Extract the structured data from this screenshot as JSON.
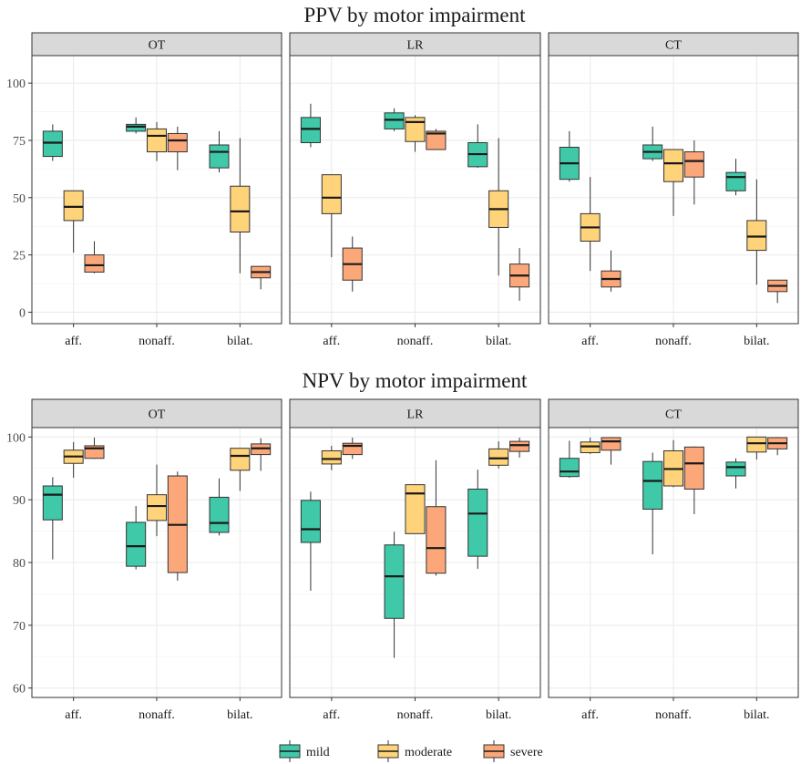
{
  "chart_data": [
    {
      "type": "boxplot",
      "title": "PPV by motor impairment",
      "ylim": [
        -5,
        112
      ],
      "yticks": [
        0,
        25,
        50,
        75,
        100
      ],
      "categories": [
        "aff.",
        "nonaff.",
        "bilat."
      ],
      "facets": [
        {
          "name": "OT",
          "boxes": {
            "aff.": {
              "mild": [
                66,
                68,
                74,
                79,
                82
              ],
              "moderate": [
                26,
                40,
                46,
                53,
                53
              ],
              "severe": [
                17,
                17.5,
                20.5,
                25,
                31
              ]
            },
            "nonaff.": {
              "mild": [
                78,
                79,
                81,
                82,
                85
              ],
              "moderate": [
                66,
                70,
                77,
                80,
                83
              ],
              "severe": [
                62,
                70,
                75,
                78,
                81
              ]
            },
            "bilat.": {
              "mild": [
                61,
                63,
                70,
                73,
                79
              ],
              "moderate": [
                17,
                35,
                44,
                55,
                76
              ],
              "severe": [
                10,
                15,
                17.5,
                20,
                20
              ]
            }
          }
        },
        {
          "name": "LR",
          "boxes": {
            "aff.": {
              "mild": [
                72,
                74,
                80,
                85,
                91
              ],
              "moderate": [
                24,
                43,
                50,
                60,
                60
              ],
              "severe": [
                9,
                14,
                21,
                28,
                33
              ]
            },
            "nonaff.": {
              "mild": [
                79,
                80,
                84,
                87,
                89
              ],
              "moderate": [
                70,
                74.5,
                83,
                85,
                86
              ],
              "severe": [
                71,
                71,
                78,
                79,
                80
              ]
            },
            "bilat.": {
              "mild": [
                63,
                63.5,
                69,
                74,
                82
              ],
              "moderate": [
                16,
                37,
                45,
                53,
                76
              ],
              "severe": [
                5,
                11,
                16,
                21,
                28
              ]
            }
          }
        },
        {
          "name": "CT",
          "boxes": {
            "aff.": {
              "mild": [
                57,
                58,
                65,
                72,
                79
              ],
              "moderate": [
                18,
                31,
                37,
                43,
                59
              ],
              "severe": [
                9,
                11,
                14.5,
                18,
                27
              ]
            },
            "nonaff.": {
              "mild": [
                66,
                67,
                70,
                73,
                81
              ],
              "moderate": [
                42,
                57,
                65,
                71,
                71
              ],
              "severe": [
                47,
                59,
                66,
                70,
                75
              ]
            },
            "bilat.": {
              "mild": [
                51,
                53,
                59,
                61,
                67
              ],
              "moderate": [
                12,
                27,
                33,
                40,
                58
              ],
              "severe": [
                4,
                9,
                11.5,
                14,
                14
              ]
            }
          }
        }
      ]
    },
    {
      "type": "boxplot",
      "title": "NPV by motor impairment",
      "ylim": [
        58.5,
        101.5
      ],
      "yticks": [
        60,
        70,
        80,
        90,
        100
      ],
      "categories": [
        "aff.",
        "nonaff.",
        "bilat."
      ],
      "facets": [
        {
          "name": "OT",
          "boxes": {
            "aff.": {
              "mild": [
                80.5,
                86.8,
                90.8,
                92.2,
                93.6
              ],
              "moderate": [
                93.5,
                95.8,
                96.9,
                97.9,
                99.2
              ],
              "severe": [
                96.5,
                96.6,
                98.2,
                98.6,
                99.9
              ]
            },
            "nonaff.": {
              "mild": [
                78.9,
                79.4,
                82.6,
                86.4,
                89.0
              ],
              "moderate": [
                84.2,
                86.7,
                89.0,
                90.8,
                95.6
              ],
              "severe": [
                77.1,
                78.4,
                86.0,
                93.8,
                94.5
              ]
            },
            "bilat.": {
              "mild": [
                84.3,
                84.8,
                86.3,
                90.4,
                93.4
              ],
              "moderate": [
                91.4,
                94.7,
                97.0,
                98.2,
                98.3
              ],
              "severe": [
                94.6,
                97.2,
                98.2,
                98.9,
                99.8
              ]
            }
          }
        },
        {
          "name": "LR",
          "boxes": {
            "aff.": {
              "mild": [
                75.5,
                83.2,
                85.3,
                89.9,
                91.3
              ],
              "moderate": [
                94.7,
                95.7,
                96.5,
                97.8,
                98.6
              ],
              "severe": [
                96.5,
                97.2,
                98.6,
                99.0,
                99.9
              ]
            },
            "nonaff.": {
              "mild": [
                64.8,
                71.1,
                77.8,
                82.8,
                84.9
              ],
              "moderate": [
                84.6,
                84.6,
                91.0,
                92.4,
                92.4
              ],
              "severe": [
                77.9,
                78.3,
                82.3,
                88.9,
                96.3
              ]
            },
            "bilat.": {
              "mild": [
                79.0,
                81.0,
                87.8,
                91.7,
                94.8
              ],
              "moderate": [
                95.0,
                95.5,
                96.6,
                98.1,
                99.3
              ],
              "severe": [
                96.7,
                97.7,
                98.7,
                99.3,
                99.9
              ]
            }
          }
        },
        {
          "name": "CT",
          "boxes": {
            "aff.": {
              "mild": [
                93.5,
                93.7,
                94.5,
                96.6,
                99.4
              ],
              "moderate": [
                97.3,
                97.5,
                98.5,
                99.2,
                99.9
              ],
              "severe": [
                95.6,
                97.9,
                99.3,
                99.9,
                100
              ]
            },
            "nonaff.": {
              "mild": [
                81.3,
                88.5,
                93.0,
                96.1,
                97.5
              ],
              "moderate": [
                92.0,
                92.2,
                94.9,
                97.8,
                99.5
              ],
              "severe": [
                87.7,
                91.7,
                95.8,
                98.4,
                98.5
              ]
            },
            "bilat.": {
              "mild": [
                91.8,
                93.8,
                95.2,
                96.0,
                96.6
              ],
              "moderate": [
                96.4,
                97.6,
                99.0,
                100,
                100
              ],
              "severe": [
                97.1,
                98.1,
                99.0,
                99.9,
                100
              ]
            }
          }
        }
      ]
    }
  ],
  "legend": {
    "items": [
      {
        "label": "mild",
        "color": "#40c9a8"
      },
      {
        "label": "moderate",
        "color": "#ffd37a"
      },
      {
        "label": "severe",
        "color": "#fba77a"
      }
    ]
  }
}
